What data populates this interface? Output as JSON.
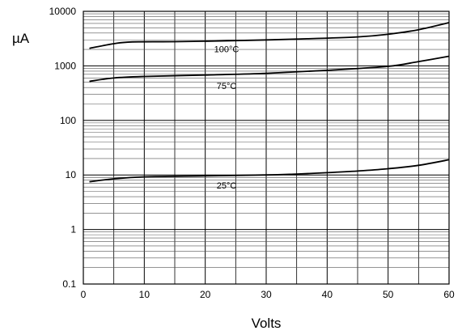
{
  "chart_data": {
    "type": "line",
    "title": "",
    "xlabel": "Volts",
    "ylabel": "µA",
    "xlim": [
      0,
      60
    ],
    "ylim": [
      0.1,
      10000
    ],
    "yscale": "log",
    "grid": true,
    "x_ticks": [
      "0",
      "10",
      "20",
      "30",
      "40",
      "50",
      "60"
    ],
    "y_ticks": [
      "0.1",
      "1",
      "10",
      "100",
      "1000",
      "10000"
    ],
    "series": [
      {
        "name": "100°C",
        "x": [
          1,
          5,
          8,
          15,
          25,
          35,
          45,
          50,
          55,
          60
        ],
        "y": [
          2100,
          2550,
          2750,
          2780,
          2900,
          3100,
          3400,
          3800,
          4600,
          6200
        ]
      },
      {
        "name": "75°C",
        "x": [
          1,
          5,
          10,
          20,
          30,
          40,
          50,
          55,
          60
        ],
        "y": [
          520,
          600,
          640,
          680,
          730,
          830,
          980,
          1200,
          1500
        ]
      },
      {
        "name": "25°C",
        "x": [
          1,
          5,
          10,
          20,
          30,
          35,
          40,
          45,
          50,
          55,
          60
        ],
        "y": [
          7.5,
          8.5,
          9.2,
          9.6,
          10.0,
          10.4,
          11.0,
          11.8,
          13.0,
          15.0,
          19.0
        ]
      }
    ]
  }
}
